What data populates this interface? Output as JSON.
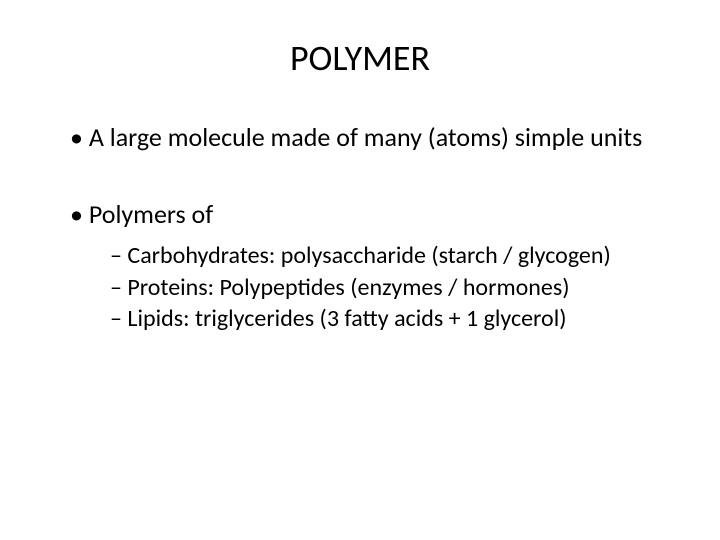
{
  "title": "POLYMER",
  "bullets": [
    {
      "level": 1,
      "text": "A large molecule made of many (atoms) simple units"
    },
    {
      "level": 0,
      "text": ""
    },
    {
      "level": 1,
      "text": "Polymers of"
    },
    {
      "level": 2,
      "text": "Carbohydrates: polysaccharide (starch / glycogen)"
    },
    {
      "level": 2,
      "text": "Proteins: Polypeptides (enzymes / hormones)"
    },
    {
      "level": 2,
      "text": "Lipids: triglycerides (3 fatty acids + 1 glycerol)"
    }
  ],
  "style": {
    "background_color": "#ffffff",
    "text_color": "#000000",
    "title_fontsize": 36,
    "l1_fontsize": 26,
    "l2_fontsize": 24,
    "font_family": "Calibri"
  }
}
